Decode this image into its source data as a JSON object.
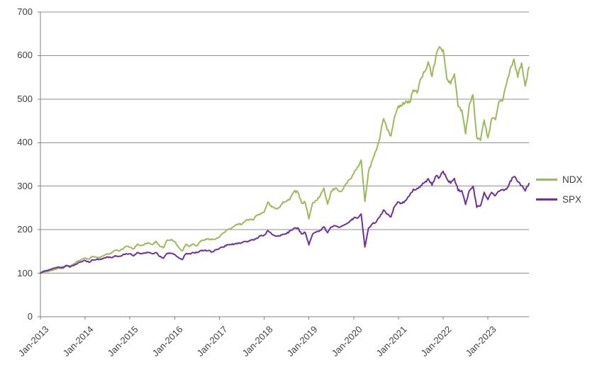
{
  "chart": {
    "background": "#ffffff",
    "axis_color": "#808080",
    "gridline_color": "#8f8f8f",
    "label_color": "#404040",
    "legend_items": [
      {
        "label": "NDX",
        "color": "#9bbb59"
      },
      {
        "label": "SPX",
        "color": "#7030a0"
      }
    ]
  },
  "chart_data": {
    "type": "line",
    "title": "",
    "xlabel": "",
    "ylabel": "",
    "grid": true,
    "legend_position": "right",
    "ylim": [
      0,
      700
    ],
    "y_ticks": [
      0,
      100,
      200,
      300,
      400,
      500,
      600,
      700
    ],
    "x_tick_labels": [
      "Jan-2013",
      "Jan-2014",
      "Jan-2015",
      "Jan-2016",
      "Jan-2017",
      "Jan-2018",
      "Jan-2019",
      "Jan-2020",
      "Jan-2021",
      "Jan-2022",
      "Jan-2023"
    ],
    "x_start": "Jan-2013",
    "x_end": "Nov-2023",
    "x_frequency": "monthly",
    "index_base": 100,
    "series": [
      {
        "name": "NDX",
        "color": "#9bbb59",
        "values": [
          100,
          102.7,
          103.3,
          106.2,
          109.0,
          112.0,
          110.5,
          117.6,
          116.5,
          121.8,
          127.5,
          131.1,
          135.0,
          132.3,
          138.9,
          136.0,
          135.9,
          140.2,
          144.4,
          145.7,
          152.4,
          151.1,
          155.2,
          162.0,
          159.2,
          155.9,
          166.9,
          163.3,
          167.3,
          169.7,
          165.9,
          173.3,
          161.9,
          158.3,
          176.2,
          176.9,
          172.6,
          160.5,
          151.0,
          166.5,
          162.0,
          167.3,
          163.0,
          174.4,
          175.9,
          179.3,
          177.5,
          178.2,
          182.8,
          192.0,
          199.1,
          202.4,
          207.8,
          213.5,
          212.6,
          220.7,
          223.5,
          222.6,
          232.8,
          237.1,
          240.4,
          263.0,
          252.0,
          249.4,
          250.5,
          263.7,
          264.9,
          272.1,
          287.9,
          286.3,
          262.0,
          262.7,
          225.0,
          261.9,
          267.3,
          277.3,
          295.6,
          258.9,
          288.3,
          294.9,
          289.0,
          291.2,
          306.5,
          315.8,
          328.2,
          343.9,
          360.0,
          265.0,
          334.1,
          359.1,
          381.7,
          409.9,
          455.1,
          429.1,
          415.4,
          461.0,
          484.3,
          485.7,
          495.0,
          491.9,
          520.9,
          514.3,
          546.9,
          562.2,
          585.6,
          552.0,
          595.6,
          620.0,
          613.3,
          545.0,
          535.1,
          557.7,
          483.1,
          475.1,
          420.0,
          486.6,
          510.0,
          412.4,
          405.0,
          452.1,
          411.1,
          454.8,
          452.5,
          495.3,
          497.7,
          535.7,
          570.4,
          591.9,
          550.0,
          583.0,
          530.0,
          573.0
        ]
      },
      {
        "name": "SPX",
        "color": "#7030a0",
        "values": [
          100,
          105.1,
          106.2,
          110.0,
          112.0,
          114.3,
          112.6,
          118.2,
          114.5,
          117.9,
          123.2,
          126.6,
          129.6,
          125.0,
          130.4,
          131.3,
          132.1,
          134.9,
          137.4,
          135.4,
          140.4,
          138.3,
          141.5,
          145.0,
          144.4,
          139.9,
          147.6,
          145.0,
          146.3,
          147.7,
          144.7,
          147.5,
          138.3,
          134.6,
          145.8,
          145.9,
          143.3,
          136.0,
          131.0,
          144.4,
          144.8,
          147.0,
          147.2,
          152.4,
          152.2,
          152.0,
          149.1,
          154.2,
          157.0,
          159.8,
          165.8,
          165.7,
          167.2,
          169.1,
          169.9,
          173.2,
          173.3,
          176.6,
          180.6,
          185.7,
          187.5,
          198.0,
          190.3,
          185.2,
          185.7,
          189.7,
          190.6,
          197.5,
          203.5,
          204.3,
          190.2,
          193.5,
          165.0,
          189.6,
          195.2,
          198.7,
          206.6,
          193.0,
          206.3,
          209.0,
          205.2,
          208.7,
          213.0,
          220.2,
          226.6,
          226.2,
          236.0,
          160.0,
          204.2,
          213.4,
          217.4,
          229.4,
          245.4,
          235.8,
          229.3,
          254.0,
          263.4,
          260.4,
          267.2,
          278.6,
          293.2,
          294.8,
          301.4,
          308.2,
          317.1,
          302.1,
          322.9,
          320.2,
          334.2,
          316.6,
          306.7,
          317.6,
          289.7,
          289.7,
          258.0,
          289.6,
          300.0,
          251.4,
          255.0,
          286.1,
          269.3,
          285.9,
          278.4,
          288.1,
          292.3,
          293.1,
          312.0,
          321.8,
          310.0,
          301.0,
          289.0,
          306.0
        ]
      }
    ]
  }
}
